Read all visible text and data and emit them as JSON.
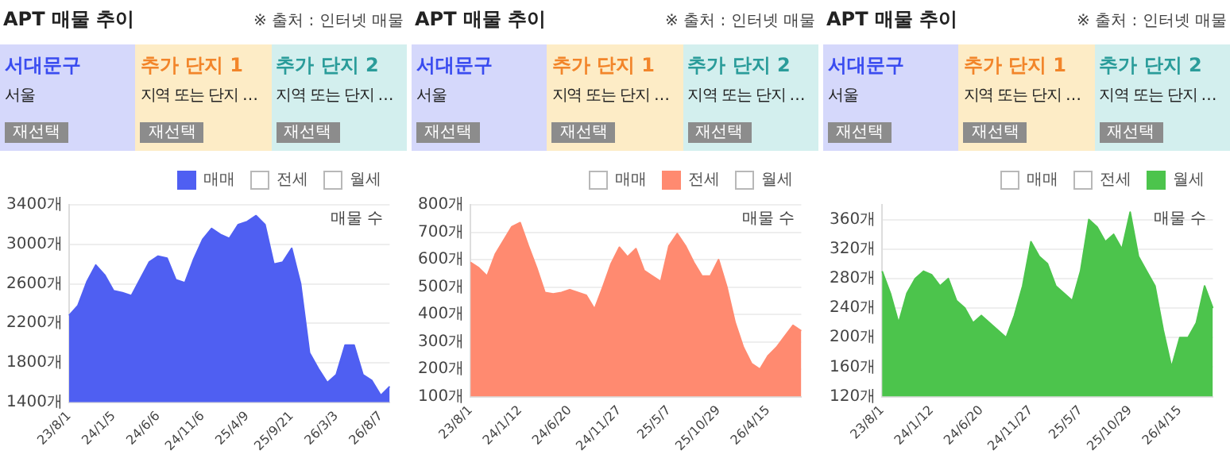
{
  "chart_data": [
    {
      "type": "area",
      "title": "APT 매물 추이",
      "ylabel": "매물 수",
      "marker": "none",
      "grid": "y",
      "legend": "top right",
      "annotations": [
        "※ 출처 : 인터넷 매물",
        "서대문구",
        "서울",
        "재선택",
        "추가 단지 1",
        "지역 또는 단지 …",
        "재선택",
        "추가 단지 2",
        "지역 또는 단지 …",
        "재선택"
      ],
      "categories": [
        "23/8/1",
        null,
        null,
        null,
        null,
        "24/1/5",
        null,
        null,
        null,
        null,
        "24/6/6",
        null,
        null,
        null,
        null,
        "24/11/6",
        null,
        null,
        null,
        null,
        "25/4/9",
        null,
        null,
        null,
        null,
        "25/9/21",
        null,
        null,
        null,
        null,
        "26/3/3",
        null,
        null,
        null,
        null,
        "26/8/7",
        null
      ],
      "series": [
        {
          "name": "매매",
          "color": "#4f5ff2",
          "values": [
            2280,
            2380,
            2620,
            2790,
            2690,
            2530,
            2510,
            2480,
            2650,
            2820,
            2880,
            2860,
            2640,
            2610,
            2850,
            3050,
            3160,
            3100,
            3060,
            3200,
            3230,
            3290,
            3200,
            2800,
            2820,
            2960,
            2600,
            1900,
            1740,
            1600,
            1680,
            1980,
            1980,
            1680,
            1620,
            1470,
            1560
          ]
        },
        {
          "name": "전세",
          "color": "#ffffff",
          "values": [
            null,
            null,
            null,
            null,
            null,
            null,
            null,
            null,
            null,
            null,
            null,
            null,
            null,
            null,
            null,
            null,
            null,
            null,
            null,
            null,
            null,
            null,
            null,
            null,
            null,
            null,
            null,
            null,
            null,
            null,
            null,
            null,
            null,
            null,
            null,
            null,
            null
          ]
        },
        {
          "name": "월세",
          "color": "#ffffff",
          "values": [
            null,
            null,
            null,
            null,
            null,
            null,
            null,
            null,
            null,
            null,
            null,
            null,
            null,
            null,
            null,
            null,
            null,
            null,
            null,
            null,
            null,
            null,
            null,
            null,
            null,
            null,
            null,
            null,
            null,
            null,
            null,
            null,
            null,
            null,
            null,
            null,
            null
          ]
        }
      ],
      "ylim": [
        1400,
        3400
      ],
      "yticks": [
        {
          "value": 1400,
          "label": "1400개"
        },
        {
          "value": 1800,
          "label": "1800개"
        },
        {
          "value": 2200,
          "label": "2200개"
        },
        {
          "value": 2600,
          "label": "2600개"
        },
        {
          "value": 3000,
          "label": "3000개"
        },
        {
          "value": 3400,
          "label": "3400개"
        }
      ]
    },
    {
      "type": "area",
      "title": "APT 매물 추이",
      "ylabel": "매물 수",
      "marker": "none",
      "grid": "y",
      "legend": "top right",
      "annotations": [
        "※ 출처 : 인터넷 매물",
        "서대문구",
        "서울",
        "재선택",
        "추가 단지 1",
        "지역 또는 단지 …",
        "재선택",
        "추가 단지 2",
        "지역 또는 단지 …",
        "재선택"
      ],
      "categories": [
        "23/8/1",
        null,
        null,
        null,
        null,
        null,
        "24/1/12",
        null,
        null,
        null,
        null,
        null,
        "24/6/20",
        null,
        null,
        null,
        null,
        null,
        "24/11/27",
        null,
        null,
        null,
        null,
        null,
        "25/5/7",
        null,
        null,
        null,
        null,
        null,
        "25/10/29",
        null,
        null,
        null,
        null,
        null,
        "26/4/15",
        null,
        null,
        null,
        null
      ],
      "series": [
        {
          "name": "매매",
          "color": "#ffffff",
          "values": [
            null,
            null,
            null,
            null,
            null,
            null,
            null,
            null,
            null,
            null,
            null,
            null,
            null,
            null,
            null,
            null,
            null,
            null,
            null,
            null,
            null,
            null,
            null,
            null,
            null,
            null,
            null,
            null,
            null,
            null,
            null,
            null,
            null,
            null,
            null,
            null,
            null,
            null,
            null,
            null,
            null
          ]
        },
        {
          "name": "전세",
          "color": "#ff8a70",
          "values": [
            590,
            570,
            540,
            620,
            670,
            720,
            735,
            650,
            570,
            480,
            475,
            480,
            490,
            480,
            470,
            420,
            500,
            585,
            645,
            610,
            640,
            560,
            540,
            520,
            650,
            695,
            650,
            590,
            540,
            540,
            600,
            500,
            370,
            280,
            220,
            200,
            250,
            280,
            320,
            360,
            340
          ]
        },
        {
          "name": "월세",
          "color": "#ffffff",
          "values": [
            null,
            null,
            null,
            null,
            null,
            null,
            null,
            null,
            null,
            null,
            null,
            null,
            null,
            null,
            null,
            null,
            null,
            null,
            null,
            null,
            null,
            null,
            null,
            null,
            null,
            null,
            null,
            null,
            null,
            null,
            null,
            null,
            null,
            null,
            null,
            null,
            null,
            null,
            null,
            null,
            null
          ]
        }
      ],
      "ylim": [
        100,
        800
      ],
      "yticks": [
        {
          "value": 100,
          "label": "100개"
        },
        {
          "value": 200,
          "label": "200개"
        },
        {
          "value": 300,
          "label": "300개"
        },
        {
          "value": 400,
          "label": "400개"
        },
        {
          "value": 500,
          "label": "500개"
        },
        {
          "value": 600,
          "label": "600개"
        },
        {
          "value": 700,
          "label": "700개"
        },
        {
          "value": 800,
          "label": "800개"
        }
      ]
    },
    {
      "type": "area",
      "title": "APT 매물 추이",
      "ylabel": "매물 수",
      "marker": "none",
      "grid": "y",
      "legend": "top right",
      "annotations": [
        "※ 출처 : 인터넷 매물",
        "서대문구",
        "서울",
        "재선택",
        "추가 단지 1",
        "지역 또는 단지 …",
        "재선택",
        "추가 단지 2",
        "지역 또는 단지 …",
        "재선택"
      ],
      "categories": [
        "23/8/1",
        null,
        null,
        null,
        null,
        null,
        "24/1/12",
        null,
        null,
        null,
        null,
        null,
        "24/6/20",
        null,
        null,
        null,
        null,
        null,
        "24/11/27",
        null,
        null,
        null,
        null,
        null,
        "25/5/7",
        null,
        null,
        null,
        null,
        null,
        "25/10/29",
        null,
        null,
        null,
        null,
        null,
        "26/4/15",
        null,
        null,
        null,
        null
      ],
      "series": [
        {
          "name": "매매",
          "color": "#ffffff",
          "values": [
            null,
            null,
            null,
            null,
            null,
            null,
            null,
            null,
            null,
            null,
            null,
            null,
            null,
            null,
            null,
            null,
            null,
            null,
            null,
            null,
            null,
            null,
            null,
            null,
            null,
            null,
            null,
            null,
            null,
            null,
            null,
            null,
            null,
            null,
            null,
            null,
            null,
            null,
            null,
            null,
            null
          ]
        },
        {
          "name": "전세",
          "color": "#ffffff",
          "values": [
            null,
            null,
            null,
            null,
            null,
            null,
            null,
            null,
            null,
            null,
            null,
            null,
            null,
            null,
            null,
            null,
            null,
            null,
            null,
            null,
            null,
            null,
            null,
            null,
            null,
            null,
            null,
            null,
            null,
            null,
            null,
            null,
            null,
            null,
            null,
            null,
            null,
            null,
            null,
            null,
            null
          ]
        },
        {
          "name": "월세",
          "color": "#4cc44c",
          "values": [
            290,
            260,
            220,
            260,
            280,
            290,
            285,
            270,
            280,
            250,
            240,
            220,
            230,
            220,
            210,
            200,
            230,
            270,
            330,
            310,
            300,
            270,
            260,
            250,
            290,
            360,
            350,
            330,
            340,
            320,
            370,
            310,
            290,
            270,
            210,
            160,
            200,
            200,
            220,
            270,
            240
          ]
        }
      ],
      "ylim": [
        120,
        380
      ],
      "yticks": [
        {
          "value": 120,
          "label": "120개"
        },
        {
          "value": 160,
          "label": "160개"
        },
        {
          "value": 200,
          "label": "200개"
        },
        {
          "value": 240,
          "label": "240개"
        },
        {
          "value": 280,
          "label": "280개"
        },
        {
          "value": 320,
          "label": "320개"
        },
        {
          "value": 360,
          "label": "360개"
        }
      ]
    }
  ]
}
